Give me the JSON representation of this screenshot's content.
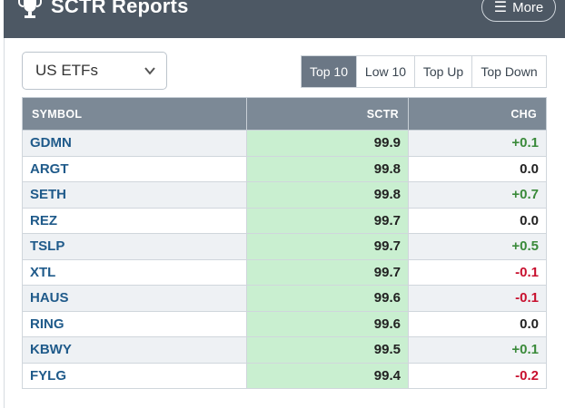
{
  "header": {
    "title": "SCTR Reports",
    "more_label": "More"
  },
  "filter": {
    "selected": "US ETFs"
  },
  "tabs": [
    {
      "label": "Top 10",
      "active": true
    },
    {
      "label": "Low 10",
      "active": false
    },
    {
      "label": "Top Up",
      "active": false
    },
    {
      "label": "Top Down",
      "active": false
    }
  ],
  "table": {
    "headers": {
      "symbol": "SYMBOL",
      "sctr": "SCTR",
      "chg": "CHG"
    },
    "rows": [
      {
        "symbol": "GDMN",
        "sctr": "99.9",
        "chg": "+0.1"
      },
      {
        "symbol": "ARGT",
        "sctr": "99.8",
        "chg": "0.0"
      },
      {
        "symbol": "SETH",
        "sctr": "99.8",
        "chg": "+0.7"
      },
      {
        "symbol": "REZ",
        "sctr": "99.7",
        "chg": "0.0"
      },
      {
        "symbol": "TSLP",
        "sctr": "99.7",
        "chg": "+0.5"
      },
      {
        "symbol": "XTL",
        "sctr": "99.7",
        "chg": "-0.1"
      },
      {
        "symbol": "HAUS",
        "sctr": "99.6",
        "chg": "-0.1"
      },
      {
        "symbol": "RING",
        "sctr": "99.6",
        "chg": "0.0"
      },
      {
        "symbol": "KBWY",
        "sctr": "99.5",
        "chg": "+0.1"
      },
      {
        "symbol": "FYLG",
        "sctr": "99.4",
        "chg": "-0.2"
      }
    ]
  },
  "colors": {
    "header_bg": "#4d5864",
    "table_header_bg": "#7c8996",
    "sctr_cell_bg": "#c9efd0",
    "positive": "#3a8a3a",
    "negative": "#c8102e",
    "symbol_link": "#1f5a8a"
  }
}
